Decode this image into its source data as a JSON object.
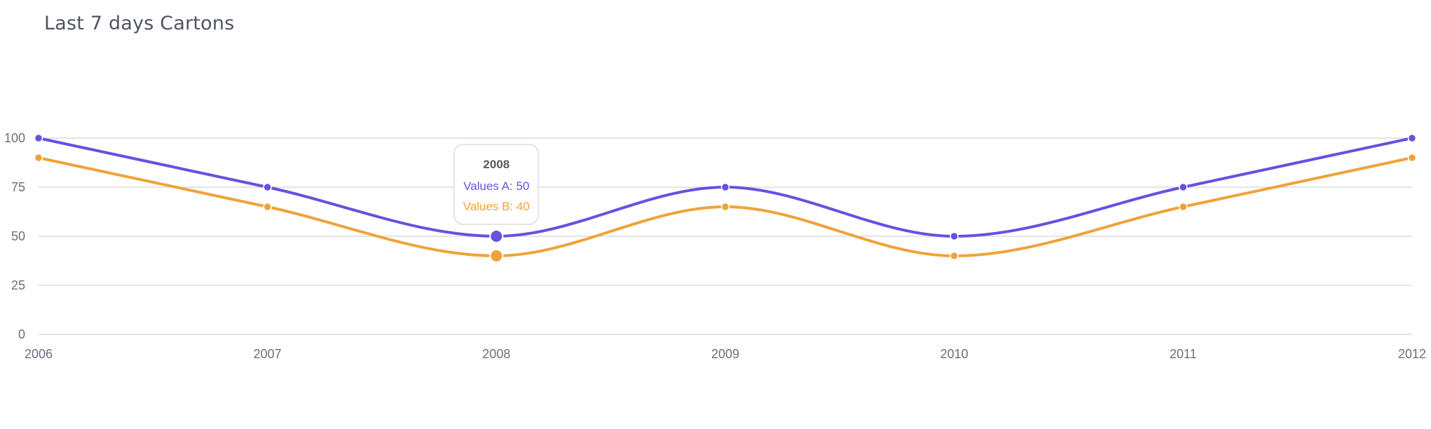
{
  "title": "Last 7 days Cartons",
  "colors": {
    "series_a": "#6a4fe0",
    "series_b": "#f0a23a",
    "grid": "#d3d3d3",
    "axis_text": "#6b6f7a"
  },
  "tooltip": {
    "title": "2008",
    "line_a": "Values A: 50",
    "line_b": "Values B: 40"
  },
  "chart_data": {
    "type": "line",
    "categories": [
      "2006",
      "2007",
      "2008",
      "2009",
      "2010",
      "2011",
      "2012"
    ],
    "series": [
      {
        "name": "Values A",
        "values": [
          100,
          75,
          50,
          75,
          50,
          75,
          100
        ]
      },
      {
        "name": "Values B",
        "values": [
          90,
          65,
          40,
          65,
          40,
          65,
          90
        ]
      }
    ],
    "yticks": [
      0,
      25,
      50,
      75,
      100
    ],
    "ylim": [
      0,
      100
    ],
    "grid": true,
    "smooth": true,
    "highlighted_category": "2008"
  }
}
